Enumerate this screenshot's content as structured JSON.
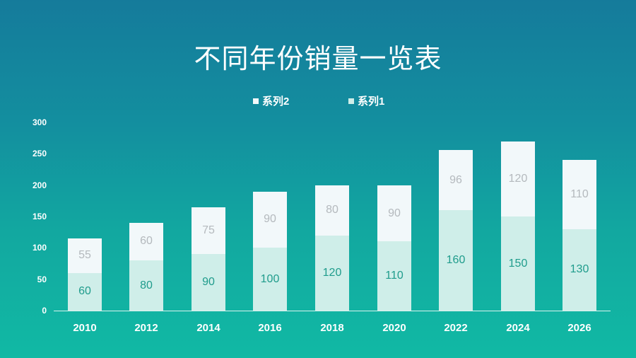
{
  "title": "不同年份销量一览表",
  "colors": {
    "series2": "#f2f8fa",
    "series1": "#cfeee9",
    "series2_label": "#b4b9bd",
    "series1_label": "#1f9c8c"
  },
  "legend": [
    {
      "label": "系列2",
      "color": "#f2f8fa"
    },
    {
      "label": "系列1",
      "color": "#cfeee9"
    }
  ],
  "chart_data": {
    "type": "bar",
    "stacked": true,
    "title": "不同年份销量一览表",
    "xlabel": "",
    "ylabel": "",
    "categories": [
      "2010",
      "2012",
      "2014",
      "2016",
      "2018",
      "2020",
      "2022",
      "2024",
      "2026"
    ],
    "series": [
      {
        "name": "系列1",
        "values": [
          60,
          80,
          90,
          100,
          120,
          110,
          160,
          150,
          130
        ]
      },
      {
        "name": "系列2",
        "values": [
          55,
          60,
          75,
          90,
          80,
          90,
          96,
          120,
          110
        ]
      }
    ],
    "ylim": [
      0,
      300
    ],
    "yticks": [
      "0",
      "50",
      "100",
      "150",
      "200",
      "250",
      "300"
    ],
    "grid": false,
    "legend_position": "top",
    "data_labels": true
  }
}
